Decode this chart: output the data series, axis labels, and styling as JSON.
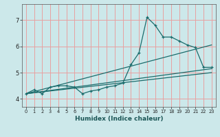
{
  "xlabel": "Humidex (Indice chaleur)",
  "bg_color": "#cce8ea",
  "grid_color": "#e8a0a0",
  "line_color": "#1a6b6b",
  "xlim": [
    -0.5,
    23.5
  ],
  "ylim": [
    3.7,
    7.6
  ],
  "xticks": [
    0,
    1,
    2,
    3,
    4,
    5,
    6,
    7,
    8,
    9,
    10,
    11,
    12,
    13,
    14,
    15,
    16,
    17,
    18,
    19,
    20,
    21,
    22,
    23
  ],
  "yticks": [
    4,
    5,
    6,
    7
  ],
  "line1_x": [
    0,
    1,
    2,
    3,
    4,
    5,
    6,
    7,
    8,
    9,
    10,
    11,
    12,
    13,
    14,
    15,
    16,
    17,
    18,
    19,
    20,
    21,
    22,
    23
  ],
  "line1_y": [
    4.2,
    4.35,
    4.2,
    4.45,
    4.5,
    4.5,
    4.45,
    4.2,
    4.3,
    4.35,
    4.45,
    4.5,
    4.6,
    5.3,
    5.75,
    7.1,
    6.8,
    6.35,
    6.35,
    6.2,
    6.05,
    5.95,
    5.2,
    5.2
  ],
  "line2_x": [
    0,
    23
  ],
  "line2_y": [
    4.2,
    5.15
  ],
  "line3_x": [
    0,
    23
  ],
  "line3_y": [
    4.2,
    6.05
  ],
  "line4_x": [
    0,
    23
  ],
  "line4_y": [
    4.2,
    5.0
  ]
}
